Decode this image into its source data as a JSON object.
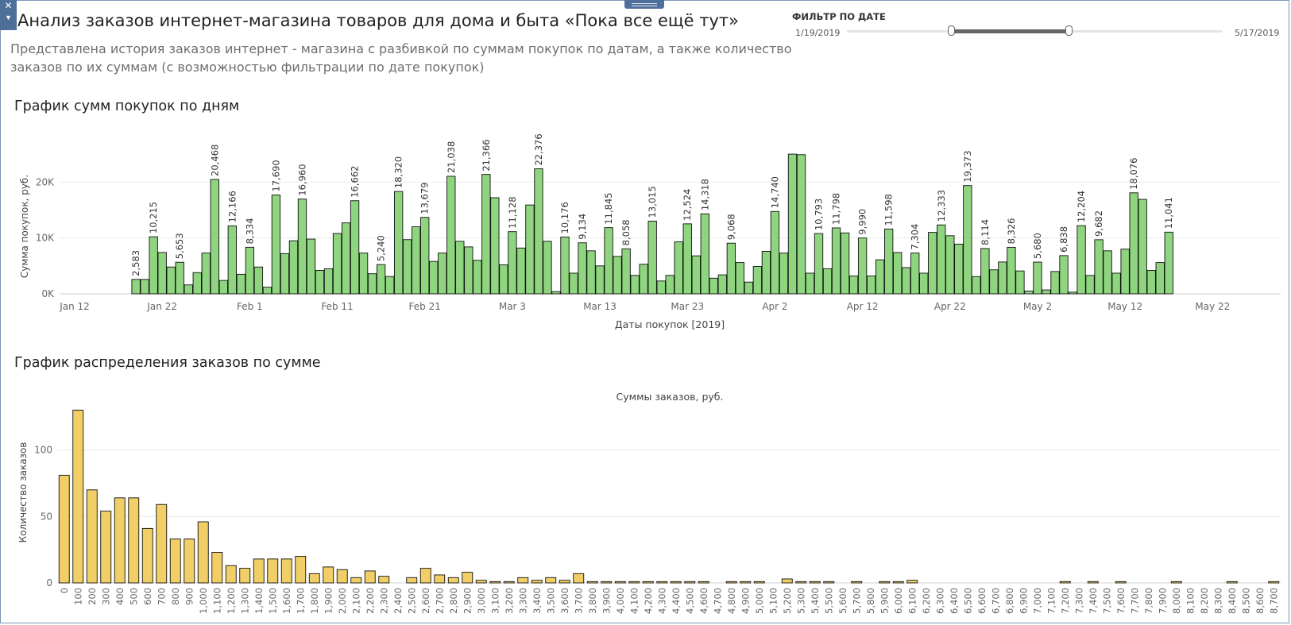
{
  "header": {
    "title": "Анализ заказов интернет-магазина товаров для дома и быта «Пока все ещё тут»",
    "subtitle": "Представлена история  заказов  интернет - магазина  с разбивкой по суммам покупок по датам, а также количество заказов по их суммам (с возможностью фильтрации по дате покупок)"
  },
  "filter": {
    "title": "ФИЛЬТР ПО ДАТЕ",
    "min_label": "1/19/2019",
    "max_label": "5/17/2019"
  },
  "chart_data": [
    {
      "type": "bar",
      "title": "График сумм покупок по дням",
      "xlabel": "Даты покупок [2019]",
      "ylabel": "Сумма покупок, руб.",
      "x_start_date": "Jan 19",
      "x_ticks": [
        "Jan 12",
        "Jan 22",
        "Feb 1",
        "Feb 11",
        "Feb 21",
        "Mar 3",
        "Mar 13",
        "Mar 23",
        "Apr 2",
        "Apr 12",
        "Apr 22",
        "May 2",
        "May 12",
        "May 22"
      ],
      "y_ticks": [
        "0K",
        "10K",
        "20K"
      ],
      "ylim": [
        0,
        27000
      ],
      "grid": true,
      "bar_color": "#8fd47f",
      "values": [
        2583,
        2583,
        10215,
        7400,
        4800,
        5653,
        1600,
        3800,
        7300,
        20468,
        2400,
        12166,
        3500,
        8334,
        4800,
        1200,
        17690,
        7200,
        9500,
        16960,
        9800,
        4200,
        4500,
        10800,
        12700,
        16662,
        7300,
        3600,
        5240,
        3100,
        18320,
        9700,
        12000,
        13679,
        5800,
        7300,
        21038,
        9400,
        8400,
        6000,
        21366,
        17200,
        5200,
        11128,
        8200,
        15900,
        22376,
        9400,
        400,
        10176,
        3700,
        9134,
        7700,
        5000,
        11845,
        6700,
        8058,
        3300,
        5300,
        13015,
        2300,
        3300,
        9300,
        12524,
        6800,
        14318,
        2800,
        3400,
        9068,
        5600,
        2100,
        4900,
        7600,
        14740,
        7300,
        25000,
        24900,
        3700,
        10793,
        4500,
        11798,
        10900,
        3200,
        9990,
        3200,
        6100,
        11598,
        7400,
        4700,
        7304,
        3700,
        11000,
        12333,
        10400,
        8900,
        19373,
        3100,
        8114,
        4300,
        5700,
        8326,
        4100,
        500,
        5680,
        700,
        4000,
        6838,
        300,
        12204,
        3300,
        9682,
        7700,
        3700,
        8000,
        18076,
        16900,
        4200,
        5600,
        11041
      ],
      "labels": {
        "0": "2,583",
        "2": "10,215",
        "5": "5,653",
        "9": "20,468",
        "11": "12,166",
        "13": "8,334",
        "16": "17,690",
        "19": "16,960",
        "25": "16,662",
        "28": "5,240",
        "30": "18,320",
        "33": "13,679",
        "36": "21,038",
        "40": "21,366",
        "43": "11,128",
        "46": "22,376",
        "49": "10,176",
        "51": "9,134",
        "54": "11,845",
        "56": "8,058",
        "59": "13,015",
        "63": "12,524",
        "65": "14,318",
        "68": "9,068",
        "73": "14,740",
        "78": "10,793",
        "80": "11,798",
        "83": "9,990",
        "86": "11,598",
        "89": "7,304",
        "92": "12,333",
        "95": "19,373",
        "97": "8,114",
        "100": "8,326",
        "103": "5,680",
        "106": "6,838",
        "108": "12,204",
        "110": "9,682",
        "114": "18,076",
        "118": "11,041"
      }
    },
    {
      "type": "bar",
      "title": "График распределения заказов по сумме",
      "xlabel": "Суммы заказов, руб.",
      "ylabel": "Количество заказов",
      "y_ticks": [
        "0",
        "50",
        "100"
      ],
      "ylim": [
        0,
        135
      ],
      "grid": true,
      "bar_color": "#f2cf66",
      "categories": [
        "0",
        "100",
        "200",
        "300",
        "400",
        "500",
        "600",
        "700",
        "800",
        "900",
        "1,000",
        "1,100",
        "1,200",
        "1,300",
        "1,400",
        "1,500",
        "1,600",
        "1,700",
        "1,800",
        "1,900",
        "2,000",
        "2,100",
        "2,200",
        "2,300",
        "2,400",
        "2,500",
        "2,600",
        "2,700",
        "2,800",
        "2,900",
        "3,000",
        "3,100",
        "3,200",
        "3,300",
        "3,400",
        "3,500",
        "3,600",
        "3,700",
        "3,800",
        "3,900",
        "4,000",
        "4,100",
        "4,200",
        "4,300",
        "4,400",
        "4,500",
        "4,600",
        "4,700",
        "4,800",
        "4,900",
        "5,000",
        "5,100",
        "5,200",
        "5,300",
        "5,400",
        "5,500",
        "5,600",
        "5,700",
        "5,800",
        "5,900",
        "6,000",
        "6,100",
        "6,200",
        "6,300",
        "6,400",
        "6,500",
        "6,600",
        "6,700",
        "6,800",
        "6,900",
        "7,000",
        "7,100",
        "7,200",
        "7,300",
        "7,400",
        "7,500",
        "7,600",
        "7,700",
        "7,800",
        "7,900",
        "8,000",
        "8,100",
        "8,200",
        "8,300",
        "8,400",
        "8,500",
        "8,600",
        "8,700"
      ],
      "values": [
        81,
        130,
        70,
        54,
        64,
        64,
        41,
        59,
        33,
        33,
        46,
        23,
        13,
        11,
        18,
        18,
        18,
        20,
        7,
        12,
        10,
        4,
        9,
        5,
        0,
        4,
        11,
        6,
        4,
        8,
        2,
        1,
        1,
        4,
        2,
        4,
        2,
        7,
        1,
        1,
        1,
        1,
        1,
        1,
        1,
        1,
        1,
        0,
        1,
        1,
        1,
        0,
        3,
        1,
        1,
        1,
        0,
        1,
        0,
        1,
        1,
        2,
        0,
        0,
        0,
        0,
        0,
        0,
        0,
        0,
        0,
        0,
        1,
        0,
        1,
        0,
        1,
        0,
        0,
        0,
        1,
        0,
        0,
        0,
        1,
        0,
        0,
        1
      ]
    }
  ]
}
